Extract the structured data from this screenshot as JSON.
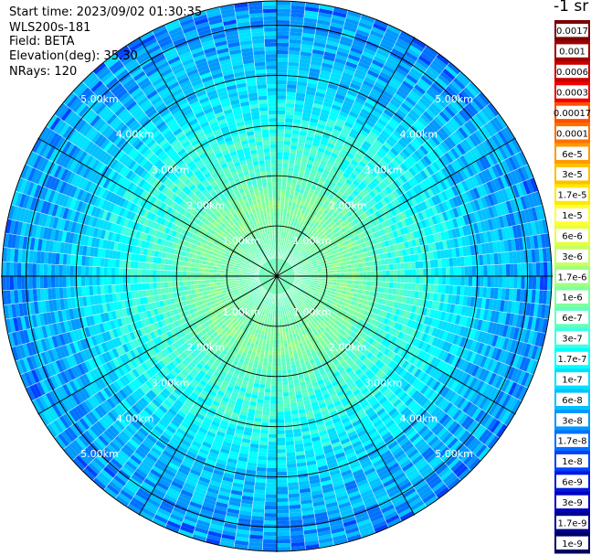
{
  "header": {
    "start_time": "Start time: 2023/09/02 01:30:35",
    "instrument": "WLS200s-181",
    "field": "Field: BETA",
    "elevation": "Elevation(deg): 35.30",
    "nrays": "NRays: 120"
  },
  "colorbar": {
    "unit_label": "-1 sr",
    "labels": [
      "0.0017",
      "0.001",
      "0.0006",
      "0.0003",
      "0.00017",
      "0.0001",
      "6e-5",
      "3e-5",
      "1.7e-5",
      "1e-5",
      "6e-6",
      "3e-6",
      "1.7e-6",
      "1e-6",
      "6e-7",
      "3e-7",
      "1.7e-7",
      "1e-7",
      "6e-8",
      "3e-8",
      "1.7e-8",
      "1e-8",
      "6e-9",
      "3e-9",
      "1.7e-9",
      "1e-9"
    ],
    "colors": [
      "#7a0000",
      "#a00000",
      "#c80000",
      "#f00000",
      "#ff5000",
      "#ff7000",
      "#ff9a00",
      "#ffc000",
      "#ffe800",
      "#ffff30",
      "#e6ff40",
      "#c8ff60",
      "#a0ff80",
      "#80ffa0",
      "#60ffc0",
      "#40ffe0",
      "#00ffff",
      "#00e0ff",
      "#00c0ff",
      "#0098ff",
      "#0070ff",
      "#0040ff",
      "#0018e0",
      "#0000c0",
      "#000090",
      "#000060"
    ]
  },
  "chart_data": {
    "type": "polar-ppi",
    "field": "BETA",
    "scale": "log",
    "nrays": 120,
    "range_rings_km": [
      1,
      2,
      3,
      4,
      5
    ],
    "ring_labels": [
      "1.00km",
      "2.00km",
      "3.00km",
      "4.00km",
      "5.00km"
    ],
    "max_range_km": 5.5,
    "grid_spokes_deg": [
      0,
      30,
      60,
      90,
      120,
      150,
      180,
      210,
      240,
      270,
      300,
      330
    ],
    "profile": [
      {
        "range_km": 0.0,
        "log10_beta": -6.1
      },
      {
        "range_km": 0.5,
        "log10_beta": -6.2
      },
      {
        "range_km": 1.0,
        "log10_beta": -6.05
      },
      {
        "range_km": 1.5,
        "log10_beta": -6.0
      },
      {
        "range_km": 2.0,
        "log10_beta": -6.3
      },
      {
        "range_km": 2.5,
        "log10_beta": -6.5
      },
      {
        "range_km": 3.0,
        "log10_beta": -6.6
      },
      {
        "range_km": 3.5,
        "log10_beta": -6.85
      },
      {
        "range_km": 4.0,
        "log10_beta": -7.1
      },
      {
        "range_km": 4.5,
        "log10_beta": -7.25
      },
      {
        "range_km": 5.0,
        "log10_beta": -7.35
      },
      {
        "range_km": 5.5,
        "log10_beta": -7.5
      }
    ]
  }
}
